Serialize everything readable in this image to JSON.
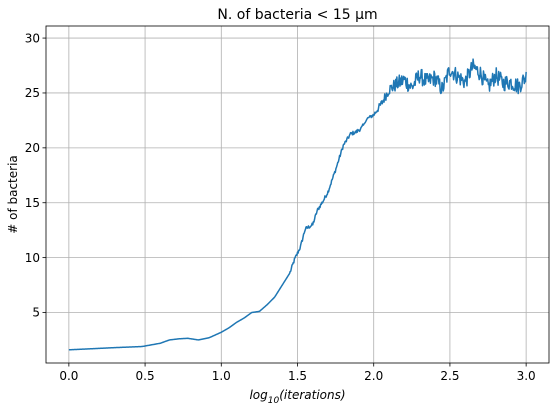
{
  "chart_data": {
    "type": "line",
    "title": "N. of bacteria < 15 μm",
    "xlabel": "log10(iterations)",
    "ylabel": "# of bacteria",
    "xlim": [
      -0.15,
      3.15
    ],
    "ylim": [
      0.4,
      31.1
    ],
    "xticks": [
      0.0,
      0.5,
      1.0,
      1.5,
      2.0,
      2.5,
      3.0
    ],
    "xtick_labels": [
      "0.0",
      "0.5",
      "1.0",
      "1.5",
      "2.0",
      "2.5",
      "3.0"
    ],
    "yticks": [
      5,
      10,
      15,
      20,
      25,
      30
    ],
    "ytick_labels": [
      "5",
      "10",
      "15",
      "20",
      "25",
      "30"
    ],
    "grid": true,
    "color": "#1f77b4",
    "series": [
      {
        "x": [
          0.0,
          0.3,
          0.48,
          0.6,
          0.66,
          0.72,
          0.78,
          0.85,
          0.92,
          1.0,
          1.05,
          1.1,
          1.15,
          1.2,
          1.25,
          1.3,
          1.35,
          1.4,
          1.45,
          1.48,
          1.52,
          1.55,
          1.6,
          1.63,
          1.67,
          1.7,
          1.75,
          1.8,
          1.85,
          1.88,
          1.92,
          1.96,
          2.0,
          2.05,
          2.1,
          2.15,
          2.2,
          2.25,
          2.3,
          2.35,
          2.4,
          2.45,
          2.5,
          2.55,
          2.6,
          2.65,
          2.7,
          2.75,
          2.8,
          2.85,
          2.9,
          2.95,
          3.0
        ],
        "y": [
          1.6,
          1.8,
          1.9,
          2.2,
          2.5,
          2.6,
          2.65,
          2.5,
          2.7,
          3.2,
          3.6,
          4.1,
          4.5,
          5.0,
          5.1,
          5.7,
          6.4,
          7.5,
          8.6,
          9.8,
          11.0,
          12.6,
          13.0,
          14.3,
          15.2,
          16.0,
          18.0,
          20.2,
          21.3,
          21.4,
          21.8,
          22.7,
          23.0,
          24.0,
          25.3,
          25.8,
          26.2,
          25.5,
          26.6,
          26.0,
          26.4,
          25.3,
          27.2,
          26.5,
          26.0,
          27.4,
          26.8,
          25.5,
          26.6,
          25.9,
          26.0,
          25.6,
          26.5
        ],
        "noisy_from_x": 1.93,
        "noise_amplitude": 0.75
      }
    ]
  }
}
